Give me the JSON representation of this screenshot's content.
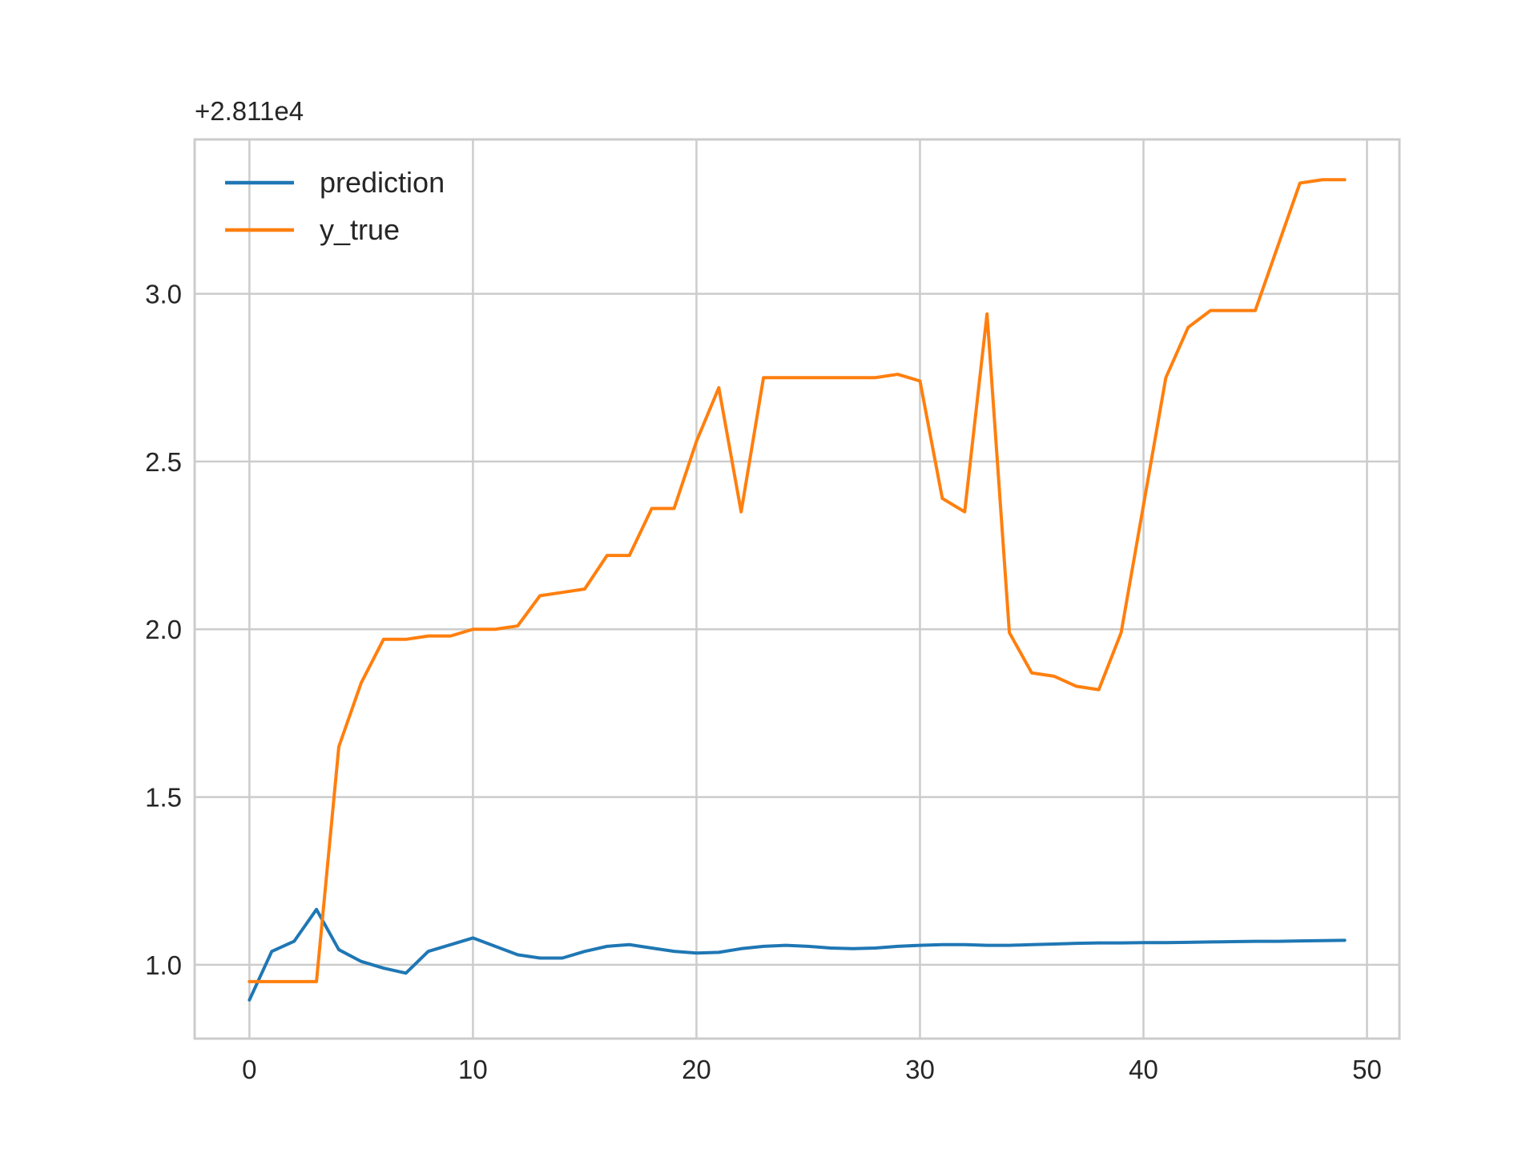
{
  "chart_data": {
    "type": "line",
    "title": "",
    "xlabel": "",
    "ylabel": "",
    "y_offset_label": "+2.811e4",
    "xlim": [
      -2.45,
      51.45
    ],
    "ylim": [
      0.78,
      3.46
    ],
    "x_ticks": [
      0,
      10,
      20,
      30,
      40,
      50
    ],
    "y_ticks": [
      1.0,
      1.5,
      2.0,
      2.5,
      3.0
    ],
    "x_tick_labels": [
      "0",
      "10",
      "20",
      "30",
      "40",
      "50"
    ],
    "y_tick_labels": [
      "1.0",
      "1.5",
      "2.0",
      "2.5",
      "3.0"
    ],
    "grid": true,
    "legend_position": "upper-left",
    "x": [
      0,
      1,
      2,
      3,
      4,
      5,
      6,
      7,
      8,
      9,
      10,
      11,
      12,
      13,
      14,
      15,
      16,
      17,
      18,
      19,
      20,
      21,
      22,
      23,
      24,
      25,
      26,
      27,
      28,
      29,
      30,
      31,
      32,
      33,
      34,
      35,
      36,
      37,
      38,
      39,
      40,
      41,
      42,
      43,
      44,
      45,
      46,
      47,
      48,
      49
    ],
    "series": [
      {
        "name": "prediction",
        "color": "#1f77b4",
        "values": [
          0.895,
          1.04,
          1.07,
          1.165,
          1.045,
          1.01,
          0.99,
          0.975,
          1.04,
          1.06,
          1.08,
          1.055,
          1.03,
          1.02,
          1.02,
          1.04,
          1.055,
          1.06,
          1.05,
          1.04,
          1.035,
          1.037,
          1.048,
          1.055,
          1.058,
          1.055,
          1.05,
          1.048,
          1.05,
          1.055,
          1.058,
          1.06,
          1.06,
          1.058,
          1.058,
          1.06,
          1.062,
          1.064,
          1.065,
          1.065,
          1.066,
          1.066,
          1.067,
          1.068,
          1.069,
          1.07,
          1.07,
          1.071,
          1.072,
          1.073
        ]
      },
      {
        "name": "y_true",
        "color": "#ff7f0e",
        "values": [
          0.95,
          0.95,
          0.95,
          0.95,
          1.65,
          1.84,
          1.97,
          1.97,
          1.98,
          1.98,
          2.0,
          2.0,
          2.01,
          2.1,
          2.11,
          2.12,
          2.22,
          2.22,
          2.36,
          2.36,
          2.56,
          2.72,
          2.35,
          2.75,
          2.75,
          2.75,
          2.75,
          2.75,
          2.75,
          2.76,
          2.74,
          2.39,
          2.35,
          2.94,
          1.99,
          1.87,
          1.86,
          1.83,
          1.82,
          1.99,
          2.37,
          2.75,
          2.9,
          2.95,
          2.95,
          2.95,
          3.14,
          3.33,
          3.34,
          3.34
        ]
      }
    ]
  }
}
